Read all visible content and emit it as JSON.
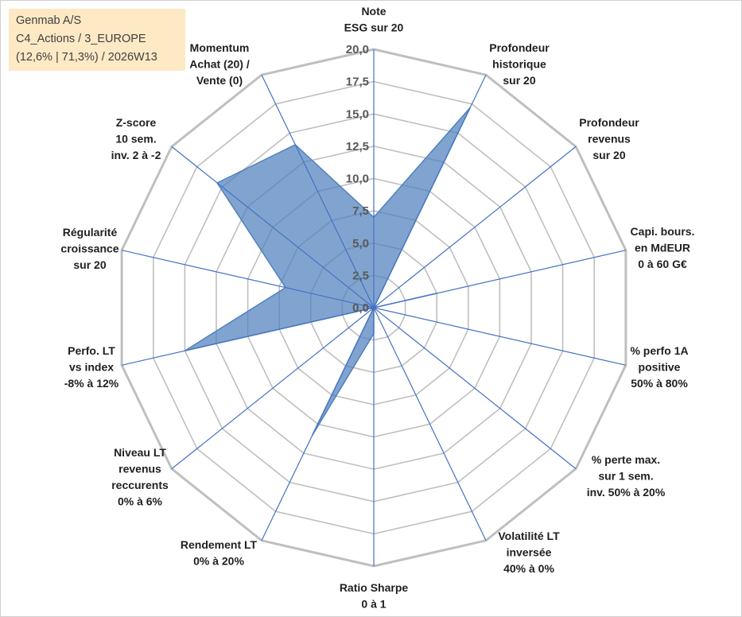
{
  "info_box": {
    "line1": "Genmab A/S",
    "line2": "C4_Actions / 3_EUROPE",
    "line3": "(12,6% | 71,3%) / 2026W13"
  },
  "chart_data": {
    "type": "radar",
    "title": "",
    "rlim": [
      0,
      20
    ],
    "ticks": [
      "0,0",
      "2,5",
      "5,0",
      "7,5",
      "10,0",
      "12,5",
      "15,0",
      "17,5",
      "20,0"
    ],
    "grid": true,
    "categories": [
      [
        "Note",
        "ESG sur 20"
      ],
      [
        "Profondeur",
        "historique",
        "sur 20"
      ],
      [
        "Profondeur",
        "revenus",
        "sur 20"
      ],
      [
        "Capi. bours.",
        "en MdEUR",
        "0 à 60 G€"
      ],
      [
        "% perfo 1A",
        "positive",
        "50% à 80%"
      ],
      [
        "% perte max.",
        "sur 1 sem.",
        "inv. 50% à 20%"
      ],
      [
        "Volatilité LT",
        "inversée",
        "40% à 0%"
      ],
      [
        "Ratio Sharpe",
        "0 à 1"
      ],
      [
        "Rendement LT",
        "0% à 20%"
      ],
      [
        "Niveau LT",
        "revenus",
        "reccurents",
        "0% à 6%"
      ],
      [
        "Perfo. LT",
        "vs index",
        "-8% à 12%"
      ],
      [
        "Régularité",
        "croissance",
        "sur 20"
      ],
      [
        "Z-score",
        "10 sem.",
        "inv. 2 à -2"
      ],
      [
        "Momentum",
        "Achat (20) /",
        "Vente (0)"
      ]
    ],
    "series": [
      {
        "values": [
          7.0,
          17.2,
          0.0,
          5.0,
          0.0,
          0.0,
          0.0,
          2.0,
          11.0,
          0.0,
          15.0,
          7.0,
          15.5,
          14.0
        ],
        "color": "#4f81bd",
        "fill": "#4f81bd",
        "fill_opacity": 0.72
      }
    ],
    "axis_line_color": "#4472c4",
    "grid_color": "#bfbfbf"
  }
}
